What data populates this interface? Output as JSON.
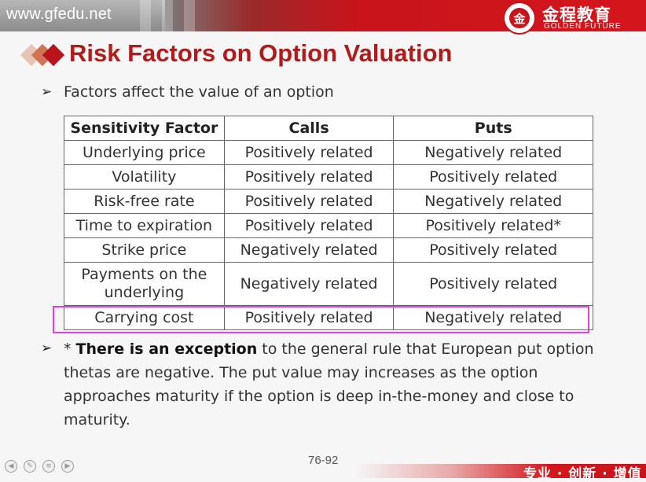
{
  "header": {
    "site_url": "www.gfedu.net",
    "brand_cn": "金程教育",
    "brand_en": "GOLDEN FUTURE",
    "logo_glyph": "金"
  },
  "slide": {
    "title": "Risk Factors on Option Valuation",
    "bullet_1": "Factors affect the value of an option",
    "table": {
      "headers": [
        "Sensitivity Factor",
        "Calls",
        "Puts"
      ],
      "rows": [
        [
          "Underlying price",
          "Positively related",
          "Negatively related"
        ],
        [
          "Volatility",
          "Positively related",
          "Positively related"
        ],
        [
          "Risk-free rate",
          "Positively related",
          "Negatively related"
        ],
        [
          "Time to expiration",
          "Positively related",
          "Positively related*"
        ],
        [
          "Strike price",
          "Negatively related",
          "Positively related"
        ],
        [
          "Payments on the underlying",
          "Negatively related",
          "Positively related"
        ],
        [
          "Carrying cost",
          "Positively related",
          "Negatively related"
        ]
      ]
    },
    "note": {
      "prefix": "* ",
      "bold": "There is an exception",
      "rest": " to the general rule that European put option thetas are negative. The put value may increases as the option approaches maturity if the option is deep in-the-money and close to maturity."
    }
  },
  "footer": {
    "page_number": "76-92",
    "slogan": "专业 · 创新 · 增值"
  },
  "colors": {
    "title": "#b01c1c",
    "brand_red": "#c8141b",
    "highlight": "#e040e0"
  }
}
